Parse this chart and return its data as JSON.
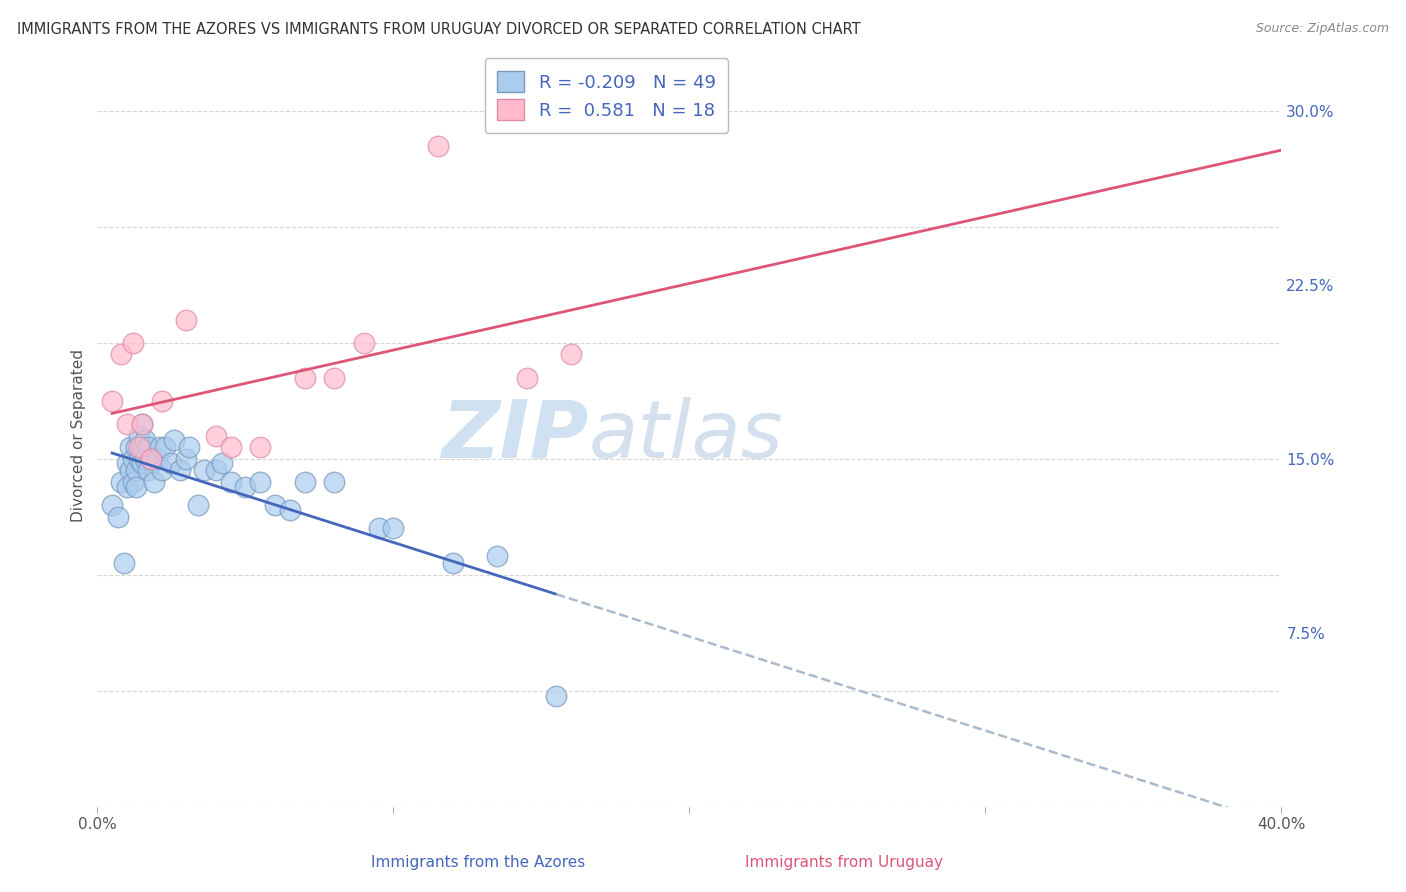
{
  "title": "IMMIGRANTS FROM THE AZORES VS IMMIGRANTS FROM URUGUAY DIVORCED OR SEPARATED CORRELATION CHART",
  "source": "Source: ZipAtlas.com",
  "ylabel": "Divorced or Separated",
  "xlim": [
    0.0,
    0.4
  ],
  "ylim": [
    0.0,
    0.32
  ],
  "ytick_labels_right": [
    "30.0%",
    "22.5%",
    "15.0%",
    "7.5%",
    ""
  ],
  "ytick_positions_right": [
    0.3,
    0.225,
    0.15,
    0.075,
    0.0
  ],
  "azores_R": "-0.209",
  "azores_N": "49",
  "uruguay_R": "0.581",
  "uruguay_N": "18",
  "background_color": "#ffffff",
  "grid_color": "#cccccc",
  "azores_color": "#aaccee",
  "azores_edge": "#7799bb",
  "uruguay_color": "#ffbbcc",
  "uruguay_edge": "#dd88aa",
  "azores_line_color": "#4466bb",
  "uruguay_line_color": "#dd5577",
  "dashed_line_color": "#aabbcc",
  "azores_x": [
    0.005,
    0.007,
    0.008,
    0.009,
    0.01,
    0.01,
    0.011,
    0.011,
    0.012,
    0.012,
    0.013,
    0.013,
    0.013,
    0.014,
    0.014,
    0.015,
    0.015,
    0.015,
    0.016,
    0.016,
    0.017,
    0.017,
    0.018,
    0.019,
    0.02,
    0.021,
    0.022,
    0.023,
    0.025,
    0.026,
    0.028,
    0.03,
    0.031,
    0.034,
    0.036,
    0.04,
    0.042,
    0.045,
    0.05,
    0.055,
    0.06,
    0.065,
    0.07,
    0.08,
    0.095,
    0.1,
    0.12,
    0.135,
    0.155
  ],
  "azores_y": [
    0.13,
    0.125,
    0.14,
    0.105,
    0.148,
    0.138,
    0.145,
    0.155,
    0.15,
    0.14,
    0.155,
    0.145,
    0.138,
    0.15,
    0.16,
    0.148,
    0.155,
    0.165,
    0.15,
    0.158,
    0.145,
    0.155,
    0.15,
    0.14,
    0.15,
    0.155,
    0.145,
    0.155,
    0.148,
    0.158,
    0.145,
    0.15,
    0.155,
    0.13,
    0.145,
    0.145,
    0.148,
    0.14,
    0.138,
    0.14,
    0.13,
    0.128,
    0.14,
    0.14,
    0.12,
    0.12,
    0.105,
    0.108,
    0.048
  ],
  "uruguay_x": [
    0.005,
    0.008,
    0.01,
    0.012,
    0.014,
    0.015,
    0.018,
    0.022,
    0.03,
    0.04,
    0.045,
    0.055,
    0.07,
    0.08,
    0.09,
    0.115,
    0.145,
    0.16
  ],
  "uruguay_y": [
    0.175,
    0.195,
    0.165,
    0.2,
    0.155,
    0.165,
    0.15,
    0.175,
    0.21,
    0.16,
    0.155,
    0.155,
    0.185,
    0.185,
    0.2,
    0.285,
    0.185,
    0.195
  ]
}
